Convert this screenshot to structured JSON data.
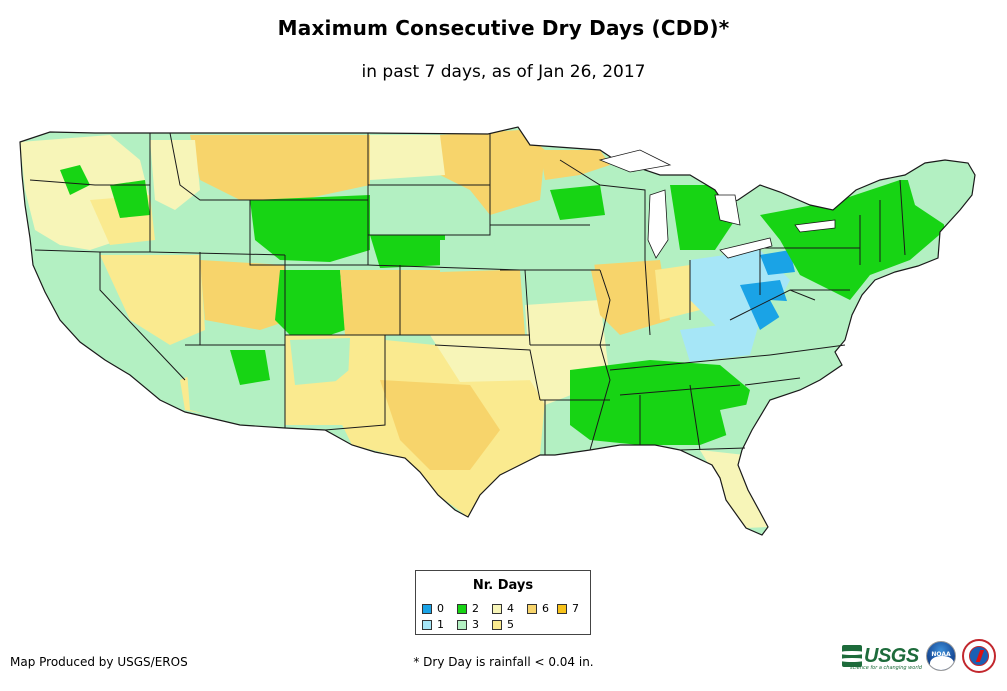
{
  "title": "Maximum Consecutive Dry Days (CDD)*",
  "subtitle": "in past 7 days, as of Jan 26, 2017",
  "legend": {
    "title": "Nr. Days",
    "items": [
      {
        "label": "0",
        "color": "#1aa3e6"
      },
      {
        "label": "1",
        "color": "#a6e6f7"
      },
      {
        "label": "2",
        "color": "#17d414"
      },
      {
        "label": "3",
        "color": "#b3f0c2"
      },
      {
        "label": "4",
        "color": "#f7f5b8"
      },
      {
        "label": "5",
        "color": "#faea8f"
      },
      {
        "label": "6",
        "color": "#f7d46b"
      },
      {
        "label": "7",
        "color": "#f7c21a"
      }
    ]
  },
  "footer": {
    "credit": "Map Produced by USGS/EROS",
    "note": "* Dry Day is rainfall < 0.04 in."
  },
  "logos": {
    "usgs": "USGS",
    "usgs_tagline": "science for a changing world",
    "noaa": "NOAA",
    "nws": "National Weather Service"
  },
  "map": {
    "region": "Contiguous United States",
    "layers": [
      "state-boundaries",
      "dry-day-counts"
    ]
  }
}
